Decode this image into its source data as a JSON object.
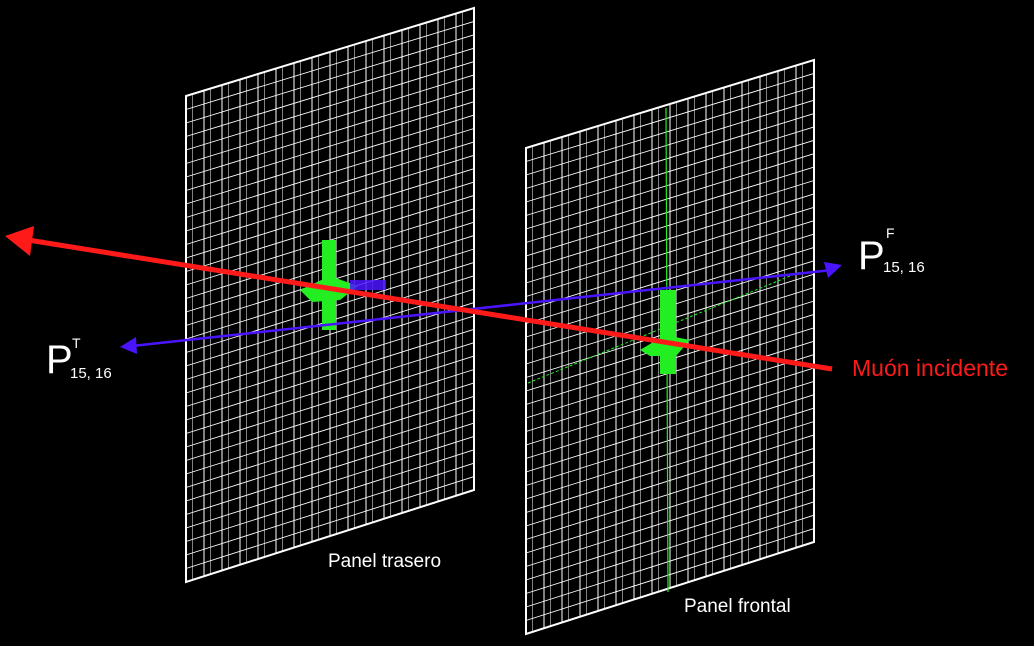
{
  "colors": {
    "background": "#000000",
    "grid": "#ffffff",
    "muon": "#ff1a1a",
    "projection": "#4a14ff",
    "hit": "#22ee22"
  },
  "panels": {
    "rear": {
      "label": "Panel trasero",
      "rows": 36,
      "cols": 16
    },
    "front": {
      "label": "Panel frontal",
      "rows": 36,
      "cols": 16
    }
  },
  "muon": {
    "label": "Muón incidente"
  },
  "points": {
    "rear": {
      "symbol": "P",
      "superscript": "T",
      "subscript": "15, 16"
    },
    "front": {
      "symbol": "P",
      "superscript": "F",
      "subscript": "15, 16"
    }
  }
}
